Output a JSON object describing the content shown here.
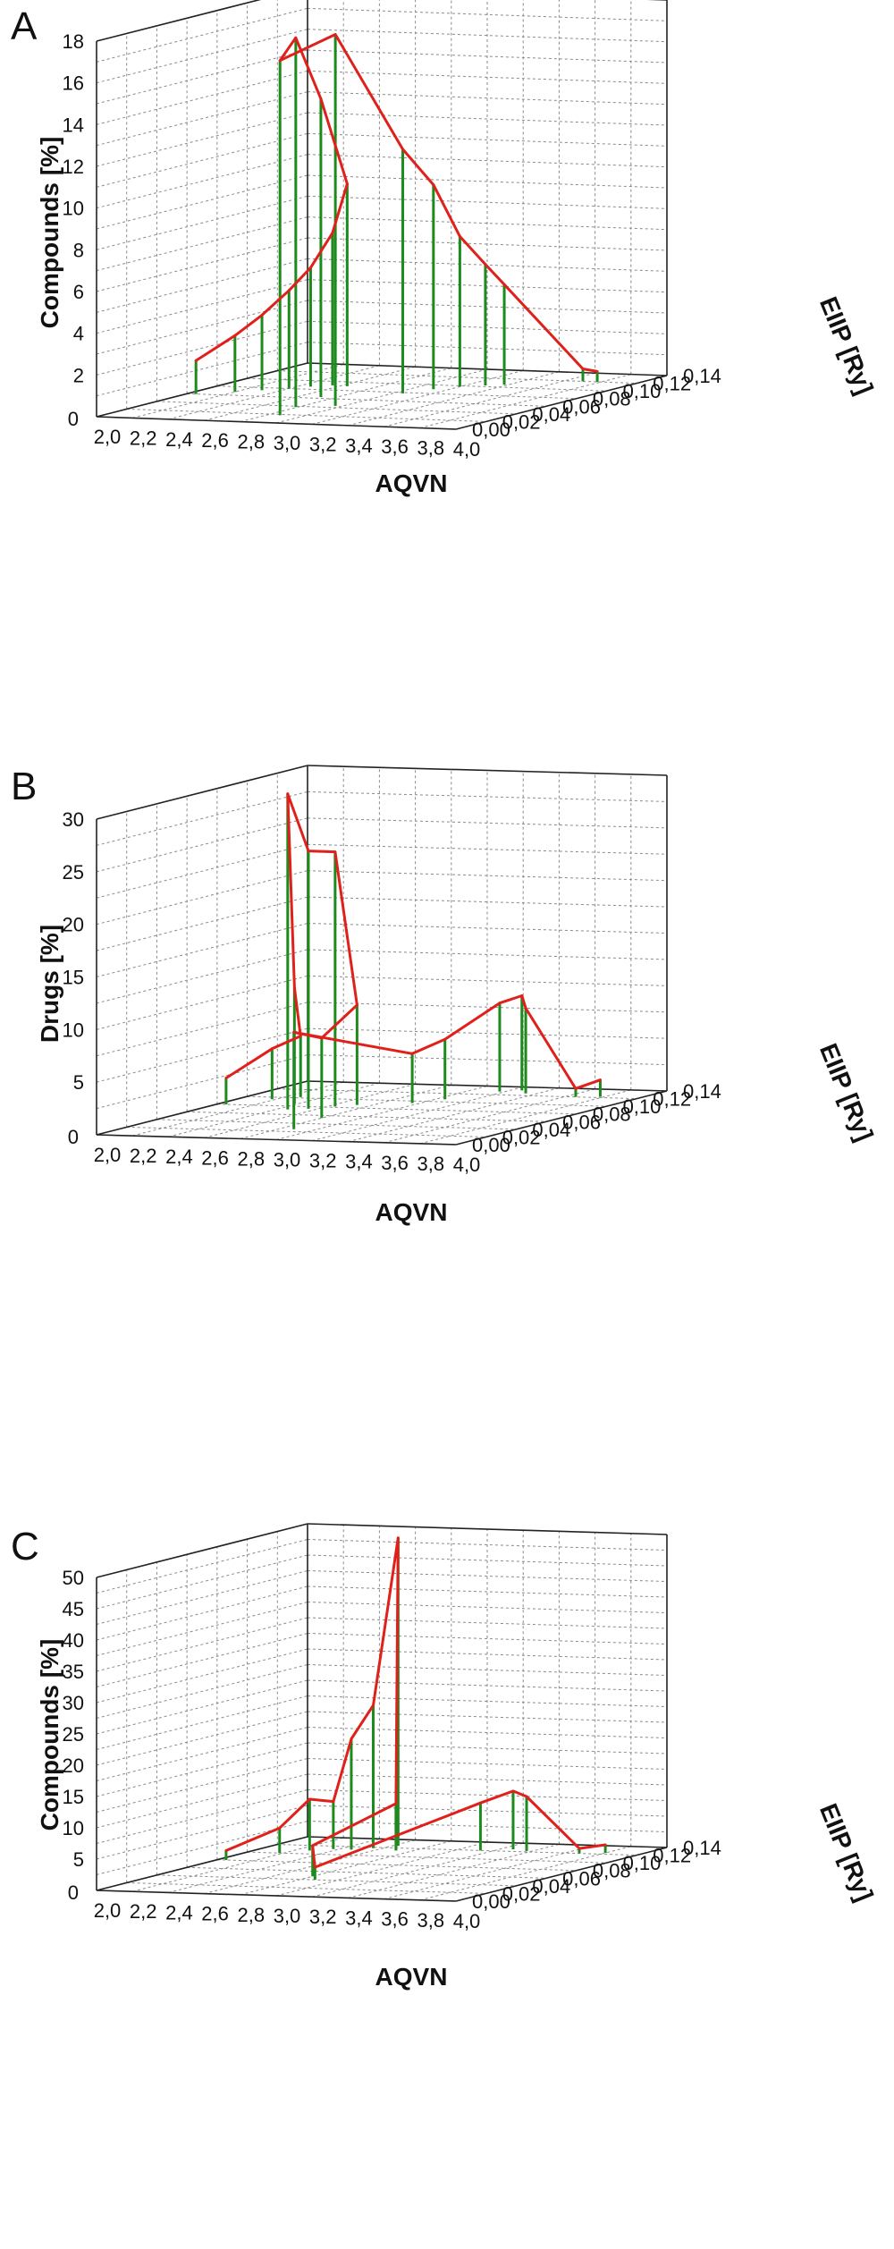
{
  "figure": {
    "panels": [
      "A",
      "B",
      "C"
    ]
  },
  "chart_data": [
    {
      "type": "line",
      "panel": "A",
      "projection": "3d-waterfall",
      "xlabel": "AQVN",
      "ylabel": "Compounds [%]",
      "zlabel": "EIIP [Ry]",
      "xlim": [
        2.0,
        4.0
      ],
      "ylim": [
        0,
        18
      ],
      "zlim": [
        0.0,
        0.14
      ],
      "x_ticks": [
        "2,0",
        "2,2",
        "2,4",
        "2,6",
        "2,8",
        "3,0",
        "3,2",
        "3,4",
        "3,6",
        "3,8",
        "4,0"
      ],
      "y_ticks": [
        "0",
        "2",
        "4",
        "6",
        "8",
        "10",
        "12",
        "14",
        "16",
        "18"
      ],
      "z_ticks": [
        "0,00",
        "0,02",
        "0,04",
        "0,06",
        "0,08",
        "0,10",
        "0,12",
        "0,14"
      ],
      "grid": true,
      "points": [
        {
          "x": 2.05,
          "z": 0.06,
          "y": 1.6
        },
        {
          "x": 2.2,
          "z": 0.068,
          "y": 2.7
        },
        {
          "x": 2.3,
          "z": 0.074,
          "y": 3.6
        },
        {
          "x": 2.4,
          "z": 0.08,
          "y": 4.7
        },
        {
          "x": 2.47,
          "z": 0.086,
          "y": 5.7
        },
        {
          "x": 2.55,
          "z": 0.091,
          "y": 7.3
        },
        {
          "x": 2.64,
          "z": 0.09,
          "y": 9.7
        },
        {
          "x": 2.72,
          "z": 0.063,
          "y": 14.3
        },
        {
          "x": 2.79,
          "z": 0.038,
          "y": 17.7
        },
        {
          "x": 2.87,
          "z": 0.018,
          "y": 17.0
        },
        {
          "x": 2.96,
          "z": 0.044,
          "y": 17.8
        },
        {
          "x": 3.05,
          "z": 0.078,
          "y": 11.7
        },
        {
          "x": 3.12,
          "z": 0.09,
          "y": 9.8
        },
        {
          "x": 3.2,
          "z": 0.098,
          "y": 7.2
        },
        {
          "x": 3.3,
          "z": 0.103,
          "y": 5.8
        },
        {
          "x": 3.38,
          "z": 0.106,
          "y": 4.8
        },
        {
          "x": 3.7,
          "z": 0.12,
          "y": 0.6
        },
        {
          "x": 3.78,
          "z": 0.12,
          "y": 0.5
        }
      ]
    },
    {
      "type": "line",
      "panel": "B",
      "projection": "3d-waterfall",
      "xlabel": "AQVN",
      "ylabel": "Drugs [%]",
      "zlabel": "EIIP [Ry]",
      "xlim": [
        2.0,
        4.0
      ],
      "ylim": [
        0,
        30
      ],
      "zlim": [
        0.0,
        0.14
      ],
      "x_ticks": [
        "2,0",
        "2,2",
        "2,4",
        "2,6",
        "2,8",
        "3,0",
        "3,2",
        "3,4",
        "3,6",
        "3,8",
        "4,0"
      ],
      "y_ticks": [
        "0",
        "5",
        "10",
        "15",
        "20",
        "25",
        "30"
      ],
      "z_ticks": [
        "0,00",
        "0,02",
        "0,04",
        "0,06",
        "0,08",
        "0,10",
        "0,12",
        "0,14"
      ],
      "grid": true,
      "points": [
        {
          "x": 2.05,
          "z": 0.08,
          "y": 2.5
        },
        {
          "x": 2.18,
          "z": 0.095,
          "y": 4.8
        },
        {
          "x": 2.28,
          "z": 0.102,
          "y": 5.8
        },
        {
          "x": 2.38,
          "z": 0.086,
          "y": 11.0
        },
        {
          "x": 2.46,
          "z": 0.072,
          "y": 30.0
        },
        {
          "x": 2.55,
          "z": 0.075,
          "y": 24.5
        },
        {
          "x": 2.64,
          "z": 0.082,
          "y": 24.2
        },
        {
          "x": 2.72,
          "z": 0.087,
          "y": 9.5
        },
        {
          "x": 2.8,
          "z": 0.054,
          "y": 7.6
        },
        {
          "x": 2.88,
          "z": 0.026,
          "y": 9.2
        },
        {
          "x": 2.96,
          "z": 0.095,
          "y": 4.7
        },
        {
          "x": 3.05,
          "z": 0.106,
          "y": 5.7
        },
        {
          "x": 3.17,
          "z": 0.128,
          "y": 8.4
        },
        {
          "x": 3.26,
          "z": 0.132,
          "y": 9.0
        },
        {
          "x": 3.34,
          "z": 0.125,
          "y": 8.1
        },
        {
          "x": 3.66,
          "z": 0.12,
          "y": 0.8
        },
        {
          "x": 3.78,
          "z": 0.122,
          "y": 1.6
        }
      ]
    },
    {
      "type": "line",
      "panel": "C",
      "projection": "3d-waterfall",
      "xlabel": "AQVN",
      "ylabel": "Compounds [%]",
      "zlabel": "EIIP [Ry]",
      "xlim": [
        2.0,
        4.0
      ],
      "ylim": [
        0,
        50
      ],
      "zlim": [
        0.0,
        0.14
      ],
      "x_ticks": [
        "2,0",
        "2,2",
        "2,4",
        "2,6",
        "2,8",
        "3,0",
        "3,2",
        "3,4",
        "3,6",
        "3,8",
        "4,0"
      ],
      "y_ticks": [
        "0",
        "5",
        "10",
        "15",
        "20",
        "25",
        "30",
        "35",
        "40",
        "45",
        "50"
      ],
      "z_ticks": [
        "0,00",
        "0,02",
        "0,04",
        "0,06",
        "0,08",
        "0,10",
        "0,12",
        "0,14"
      ],
      "grid": true,
      "points": [
        {
          "x": 2.05,
          "z": 0.08,
          "y": 1.5
        },
        {
          "x": 2.18,
          "z": 0.1,
          "y": 4.0
        },
        {
          "x": 2.28,
          "z": 0.108,
          "y": 8.2
        },
        {
          "x": 2.37,
          "z": 0.113,
          "y": 7.6
        },
        {
          "x": 2.47,
          "z": 0.113,
          "y": 17.7
        },
        {
          "x": 2.55,
          "z": 0.118,
          "y": 22.8
        },
        {
          "x": 2.63,
          "z": 0.125,
          "y": 49.2
        },
        {
          "x": 2.71,
          "z": 0.114,
          "y": 7.5
        },
        {
          "x": 2.8,
          "z": 0.048,
          "y": 4.9
        },
        {
          "x": 2.88,
          "z": 0.04,
          "y": 2.0
        },
        {
          "x": 3.13,
          "z": 0.12,
          "y": 7.6
        },
        {
          "x": 3.27,
          "z": 0.125,
          "y": 9.3
        },
        {
          "x": 3.37,
          "z": 0.122,
          "y": 8.7
        },
        {
          "x": 3.68,
          "z": 0.12,
          "y": 0.8
        },
        {
          "x": 3.8,
          "z": 0.123,
          "y": 1.3
        }
      ]
    }
  ]
}
